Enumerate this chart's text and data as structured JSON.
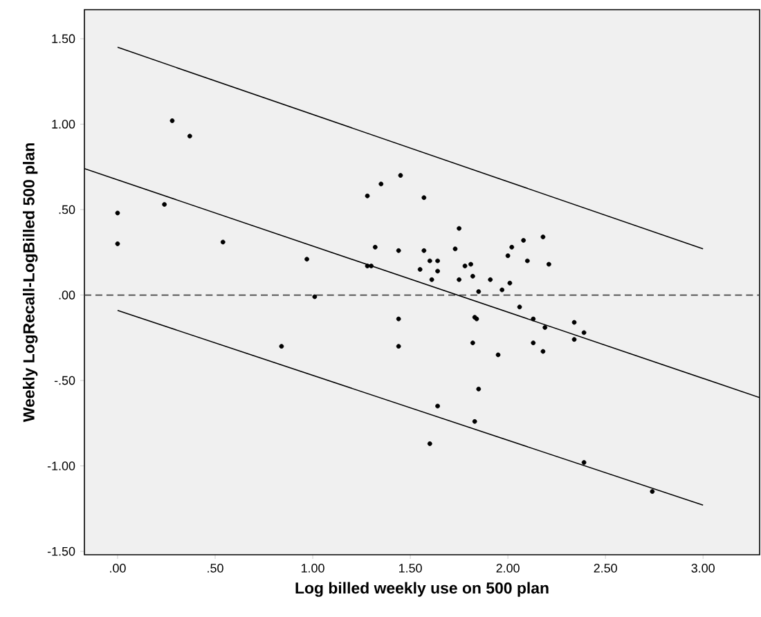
{
  "chart_data": {
    "type": "scatter",
    "xlabel": "Log billed weekly use on 500 plan",
    "ylabel": "Weekly LogRecall-LogBilled 500 plan",
    "xlim": [
      -0.17,
      3.29
    ],
    "ylim": [
      -1.52,
      1.67
    ],
    "xticks": [
      {
        "value": 0,
        "label": ".00"
      },
      {
        "value": 0.5,
        "label": ".50"
      },
      {
        "value": 1,
        "label": "1.00"
      },
      {
        "value": 1.5,
        "label": "1.50"
      },
      {
        "value": 2,
        "label": "2.00"
      },
      {
        "value": 2.5,
        "label": "2.50"
      },
      {
        "value": 3,
        "label": "3.00"
      }
    ],
    "yticks": [
      {
        "value": -1.5,
        "label": "-1.50"
      },
      {
        "value": -1,
        "label": "-1.00"
      },
      {
        "value": -0.5,
        "label": "-.50"
      },
      {
        "value": 0,
        "label": ".00"
      },
      {
        "value": 0.5,
        "label": ".50"
      },
      {
        "value": 1,
        "label": "1.00"
      },
      {
        "value": 1.5,
        "label": "1.50"
      }
    ],
    "series": [
      {
        "color": "#000000",
        "marker": "circle",
        "x": [
          0,
          0,
          0.28,
          0.37,
          0.24,
          0.54,
          0.97,
          1.01,
          1.28,
          1.35,
          1.45,
          1.57,
          1.32,
          1.44,
          1.57,
          1.28,
          1.3,
          1.55,
          1.75,
          1.73,
          1.6,
          1.64,
          1.64,
          1.61,
          1.78,
          1.81,
          1.82,
          1.75,
          1.85,
          1.91,
          1.97,
          2.01,
          2.0,
          2.02,
          2.08,
          2.18,
          2.1,
          2.21,
          2.06,
          2.13,
          2.19,
          2.34,
          2.39,
          2.34,
          2.13,
          2.18,
          1.95,
          1.83,
          1.84,
          1.44,
          1.44,
          1.82,
          1.85,
          1.64,
          1.83,
          1.6,
          2.39,
          2.74,
          0.84
        ],
        "values": [
          0.48,
          0.3,
          1.02,
          0.93,
          0.53,
          0.31,
          0.21,
          -0.01,
          0.58,
          0.65,
          0.7,
          0.57,
          0.28,
          0.26,
          0.26,
          0.17,
          0.17,
          0.15,
          0.39,
          0.27,
          0.2,
          0.2,
          0.14,
          0.09,
          0.17,
          0.18,
          0.11,
          0.09,
          0.02,
          0.09,
          0.03,
          0.07,
          0.23,
          0.28,
          0.32,
          0.34,
          0.2,
          0.18,
          -0.07,
          -0.14,
          -0.19,
          -0.16,
          -0.22,
          -0.26,
          -0.28,
          -0.33,
          -0.35,
          -0.13,
          -0.14,
          -0.14,
          -0.3,
          -0.28,
          -0.55,
          -0.65,
          -0.74,
          -0.87,
          -0.98,
          -1.15,
          -0.3
        ]
      },
      {
        "type": "line",
        "color": "#000000",
        "marker": "none",
        "x": [
          -0.17,
          3.29
        ],
        "values": [
          0.74,
          -0.6
        ]
      },
      {
        "type": "line",
        "color": "#000000",
        "marker": "none",
        "x": [
          0,
          3
        ],
        "values": [
          1.45,
          0.27
        ]
      },
      {
        "type": "line",
        "color": "#000000",
        "marker": "none",
        "x": [
          0,
          3
        ],
        "values": [
          -0.09,
          -1.23
        ]
      }
    ],
    "ref_lines": [
      {
        "axis": "y",
        "value": 0,
        "color": "#404040",
        "line_style": "dashed"
      }
    ]
  }
}
